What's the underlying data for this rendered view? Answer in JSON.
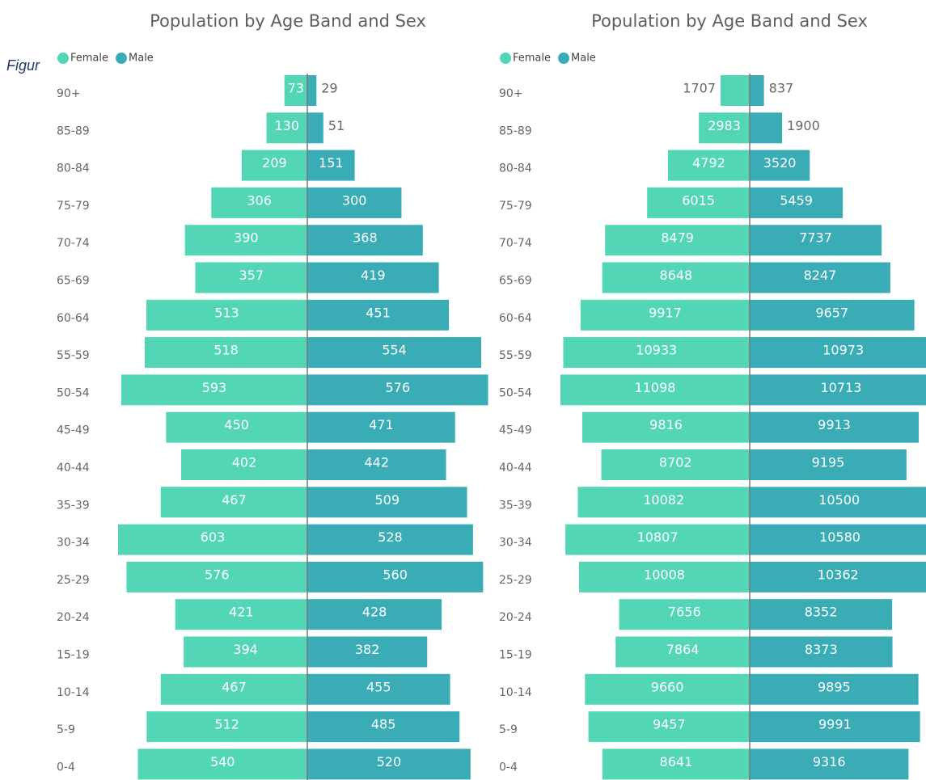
{
  "caption": "Figur",
  "chart_data": [
    {
      "type": "bar",
      "orientation": "pyramid",
      "title": "Population by Age Band and Sex",
      "categories": [
        "90+",
        "85-89",
        "80-84",
        "75-79",
        "70-74",
        "65-69",
        "60-64",
        "55-59",
        "50-54",
        "45-49",
        "40-44",
        "35-39",
        "30-34",
        "25-29",
        "20-24",
        "15-19",
        "10-14",
        "5-9",
        "0-4"
      ],
      "series": [
        {
          "name": "Female",
          "color": "#52d6b5",
          "values": [
            73,
            130,
            209,
            306,
            390,
            357,
            513,
            518,
            593,
            450,
            402,
            467,
            603,
            576,
            421,
            394,
            467,
            512,
            540
          ]
        },
        {
          "name": "Male",
          "color": "#3aacb6",
          "values": [
            29,
            51,
            151,
            300,
            368,
            419,
            451,
            554,
            576,
            471,
            442,
            509,
            528,
            560,
            428,
            382,
            455,
            485,
            520
          ]
        }
      ],
      "legend": "top-left"
    },
    {
      "type": "bar",
      "orientation": "pyramid",
      "title": "Population by Age Band and Sex",
      "categories": [
        "90+",
        "85-89",
        "80-84",
        "75-79",
        "70-74",
        "65-69",
        "60-64",
        "55-59",
        "50-54",
        "45-49",
        "40-44",
        "35-39",
        "30-34",
        "25-29",
        "20-24",
        "15-19",
        "10-14",
        "5-9",
        "0-4"
      ],
      "series": [
        {
          "name": "Female",
          "color": "#52d6b5",
          "values": [
            1707,
            2983,
            4792,
            6015,
            8479,
            8648,
            9917,
            10933,
            11098,
            9816,
            8702,
            10082,
            10807,
            10008,
            7656,
            7864,
            9660,
            9457,
            8641
          ]
        },
        {
          "name": "Male",
          "color": "#3aacb6",
          "values": [
            837,
            1900,
            3520,
            5459,
            7737,
            8247,
            9657,
            10973,
            10713,
            9913,
            9195,
            10500,
            10580,
            10362,
            8352,
            8373,
            9895,
            9991,
            9316
          ]
        }
      ],
      "legend": "top-left"
    }
  ]
}
